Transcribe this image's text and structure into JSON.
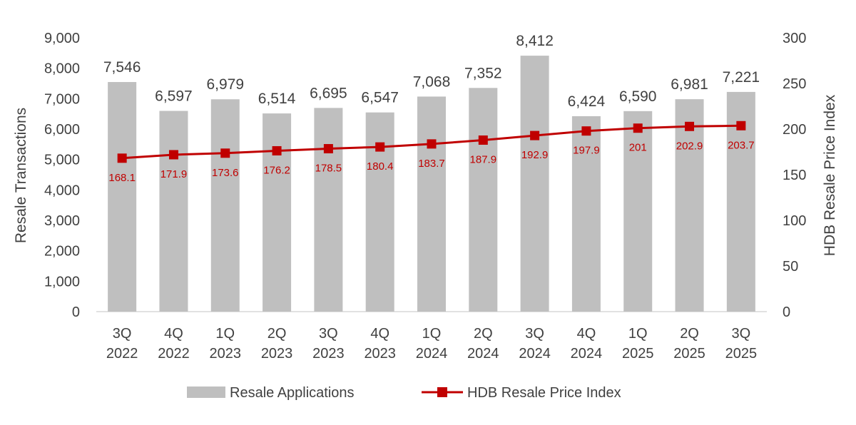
{
  "chart_data": {
    "type": "bar",
    "categories": [
      "3Q 2022",
      "4Q 2022",
      "1Q 2023",
      "2Q 2023",
      "3Q 2023",
      "4Q 2023",
      "1Q 2024",
      "2Q 2024",
      "3Q 2024",
      "4Q 2024",
      "1Q 2025",
      "2Q 2025",
      "3Q 2025"
    ],
    "category_lines": [
      [
        "3Q",
        "2022"
      ],
      [
        "4Q",
        "2022"
      ],
      [
        "1Q",
        "2023"
      ],
      [
        "2Q",
        "2023"
      ],
      [
        "3Q",
        "2023"
      ],
      [
        "4Q",
        "2023"
      ],
      [
        "1Q",
        "2024"
      ],
      [
        "2Q",
        "2024"
      ],
      [
        "3Q",
        "2024"
      ],
      [
        "4Q",
        "2024"
      ],
      [
        "1Q",
        "2025"
      ],
      [
        "2Q",
        "2025"
      ],
      [
        "3Q",
        "2025"
      ]
    ],
    "series": [
      {
        "name": "Resale Applications",
        "type": "bar",
        "axis": "left",
        "color": "#bfbfbf",
        "values": [
          7546,
          6597,
          6979,
          6514,
          6695,
          6547,
          7068,
          7352,
          8412,
          6424,
          6590,
          6981,
          7221
        ],
        "labels": [
          "7,546",
          "6,597",
          "6,979",
          "6,514",
          "6,695",
          "6,547",
          "7,068",
          "7,352",
          "8,412",
          "6,424",
          "6,590",
          "6,981",
          "7,221"
        ]
      },
      {
        "name": "HDB Resale Price Index",
        "type": "line",
        "axis": "right",
        "color": "#c00000",
        "marker": "square",
        "values": [
          168.1,
          171.9,
          173.6,
          176.2,
          178.5,
          180.4,
          183.7,
          187.9,
          192.9,
          197.9,
          201,
          202.9,
          203.7
        ],
        "labels": [
          "168.1",
          "171.9",
          "173.6",
          "176.2",
          "178.5",
          "180.4",
          "183.7",
          "187.9",
          "192.9",
          "197.9",
          "201",
          "202.9",
          "203.7"
        ]
      }
    ],
    "ylabel": "Resale Transactions",
    "y2label": "HDB Resale Price Index",
    "ylim": [
      0,
      9000
    ],
    "y2lim": [
      0,
      300
    ],
    "yticks": [
      0,
      1000,
      2000,
      3000,
      4000,
      5000,
      6000,
      7000,
      8000,
      9000
    ],
    "ytick_labels": [
      "0",
      "1,000",
      "2,000",
      "3,000",
      "4,000",
      "5,000",
      "6,000",
      "7,000",
      "8,000",
      "9,000"
    ],
    "y2ticks": [
      0,
      50,
      100,
      150,
      200,
      250,
      300
    ],
    "y2tick_labels": [
      "0",
      "50",
      "100",
      "150",
      "200",
      "250",
      "300"
    ],
    "grid": false,
    "legend": "bottom"
  }
}
